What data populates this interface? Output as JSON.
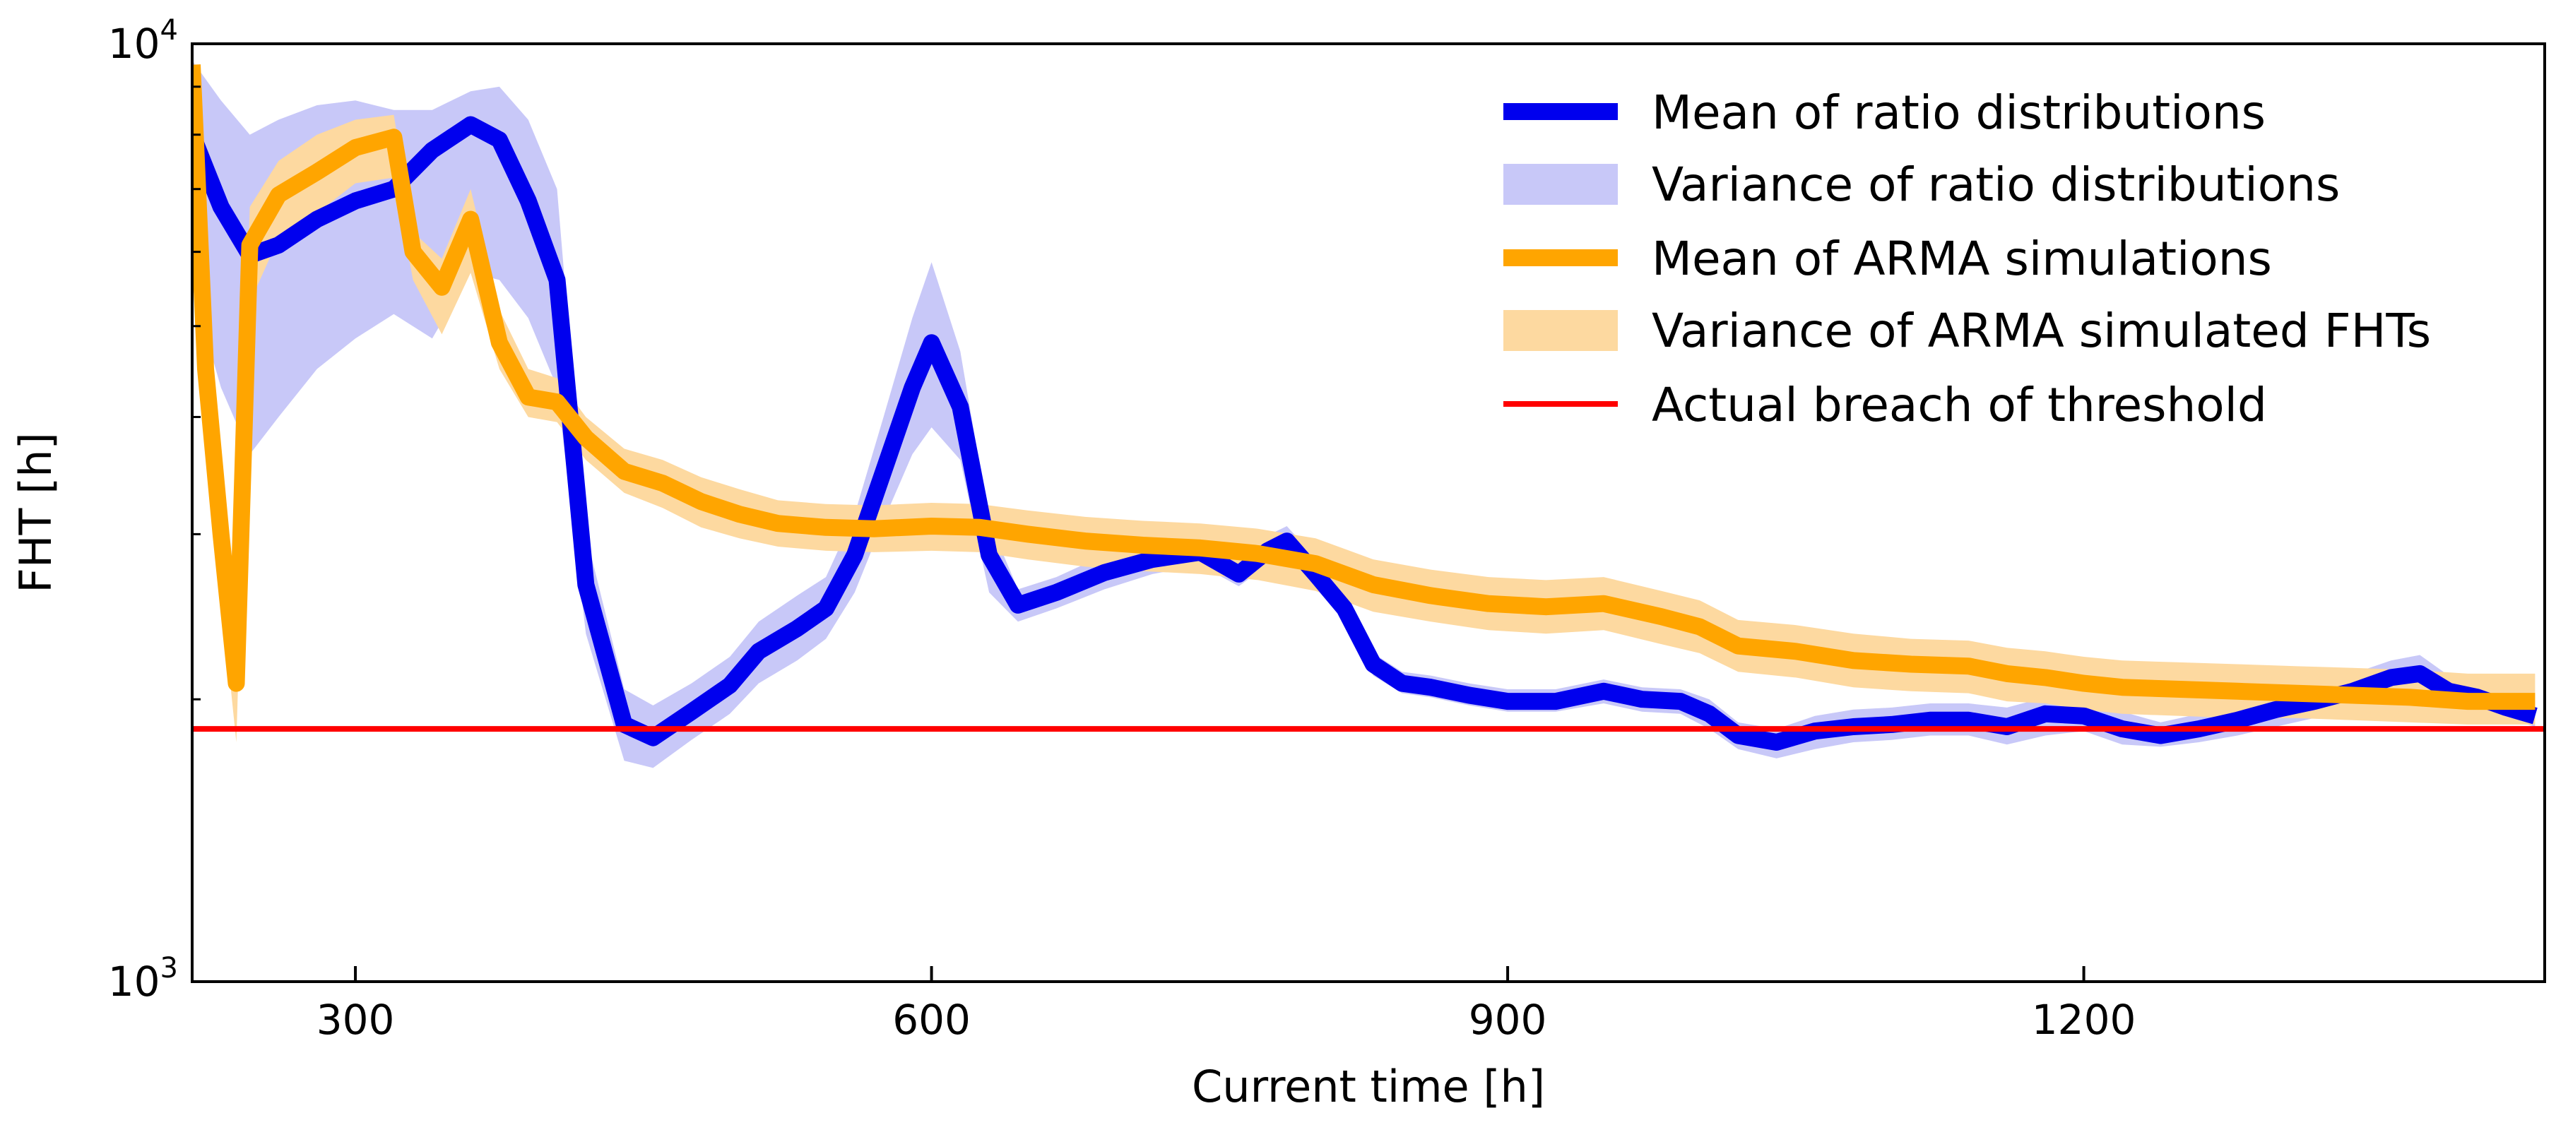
{
  "chart_data": {
    "type": "line",
    "title": "",
    "xlabel": "Current time [h]",
    "ylabel": "FHT [h]",
    "xlim": [
      215,
      1440
    ],
    "ylim": [
      1000,
      10000
    ],
    "yscale": "log",
    "x_ticks": [
      300,
      600,
      900,
      1200
    ],
    "y_ticks": [
      {
        "value": 1000,
        "base": "10",
        "exp": "3"
      },
      {
        "value": 10000,
        "base": "10",
        "exp": "4"
      }
    ],
    "legend_position": "top-right",
    "colors": {
      "ratio_mean": "#0000ee",
      "ratio_var": "#c8c8f8",
      "arma_mean": "#ffa500",
      "arma_var": "#fdd9a0",
      "threshold": "#ff0000"
    },
    "series": [
      {
        "name": "Mean of ratio distributions",
        "kind": "line",
        "x": [
          215,
          230,
          245,
          260,
          280,
          300,
          320,
          340,
          360,
          375,
          390,
          405,
          420,
          440,
          455,
          475,
          495,
          510,
          530,
          545,
          560,
          575,
          590,
          600,
          615,
          630,
          645,
          665,
          690,
          715,
          740,
          760,
          775,
          785,
          800,
          815,
          830,
          845,
          860,
          880,
          900,
          925,
          950,
          970,
          990,
          1005,
          1020,
          1040,
          1060,
          1080,
          1100,
          1120,
          1140,
          1160,
          1180,
          1200,
          1220,
          1240,
          1260,
          1280,
          1300,
          1320,
          1340,
          1360,
          1375,
          1390,
          1405,
          1420,
          1435
        ],
        "y": [
          8000,
          6700,
          5950,
          6100,
          6500,
          6800,
          7000,
          7700,
          8200,
          7900,
          6800,
          5600,
          2650,
          1880,
          1820,
          1940,
          2070,
          2250,
          2380,
          2500,
          2850,
          3500,
          4300,
          4800,
          4100,
          2850,
          2520,
          2600,
          2730,
          2820,
          2870,
          2720,
          2880,
          2950,
          2720,
          2500,
          2180,
          2080,
          2060,
          2020,
          1990,
          1990,
          2040,
          2000,
          1990,
          1930,
          1830,
          1800,
          1850,
          1870,
          1880,
          1900,
          1900,
          1870,
          1930,
          1920,
          1860,
          1830,
          1860,
          1900,
          1950,
          1990,
          2040,
          2110,
          2130,
          2040,
          2010,
          1960,
          1920
        ]
      },
      {
        "name": "Variance of ratio distributions",
        "kind": "band",
        "x": [
          215,
          230,
          245,
          260,
          280,
          300,
          320,
          340,
          360,
          375,
          390,
          405,
          420,
          440,
          455,
          475,
          495,
          510,
          530,
          545,
          560,
          575,
          590,
          600,
          615,
          630,
          645,
          665,
          690,
          715,
          740,
          760,
          775,
          785,
          800,
          815,
          830,
          845,
          860,
          880,
          900,
          925,
          950,
          970,
          990,
          1005,
          1020,
          1040,
          1060,
          1080,
          1100,
          1120,
          1140,
          1160,
          1180,
          1200,
          1220,
          1240,
          1260,
          1280,
          1300,
          1320,
          1340,
          1360,
          1375,
          1390,
          1405,
          1420,
          1435
        ],
        "lower": [
          5500,
          4300,
          3650,
          4000,
          4500,
          4850,
          5150,
          4850,
          5700,
          5600,
          5100,
          4300,
          2350,
          1720,
          1690,
          1810,
          1930,
          2080,
          2200,
          2320,
          2600,
          3100,
          3650,
          3900,
          3600,
          2600,
          2420,
          2500,
          2620,
          2720,
          2780,
          2640,
          2780,
          2850,
          2630,
          2420,
          2120,
          2030,
          2010,
          1970,
          1940,
          1940,
          1980,
          1940,
          1930,
          1860,
          1770,
          1730,
          1770,
          1800,
          1810,
          1830,
          1830,
          1790,
          1830,
          1850,
          1790,
          1780,
          1800,
          1830,
          1870,
          1910,
          1960,
          2020,
          2040,
          1980,
          1950,
          1910,
          1870
        ],
        "upper": [
          9600,
          8700,
          8000,
          8300,
          8600,
          8700,
          8500,
          8500,
          8900,
          9000,
          8300,
          7000,
          3000,
          2050,
          1970,
          2080,
          2220,
          2420,
          2580,
          2700,
          3150,
          4000,
          5100,
          5850,
          4700,
          3100,
          2620,
          2700,
          2850,
          2920,
          2980,
          2800,
          2990,
          3060,
          2830,
          2590,
          2240,
          2140,
          2120,
          2080,
          2050,
          2050,
          2100,
          2060,
          2050,
          2000,
          1890,
          1860,
          1920,
          1950,
          1960,
          1980,
          1980,
          1960,
          2010,
          2000,
          1940,
          1890,
          1930,
          1980,
          2040,
          2080,
          2130,
          2200,
          2230,
          2120,
          2080,
          2030,
          1990
        ]
      },
      {
        "name": "Mean of ARMA simulations",
        "kind": "line",
        "x": [
          215,
          222,
          230,
          238,
          245,
          260,
          280,
          300,
          320,
          330,
          345,
          360,
          375,
          390,
          405,
          420,
          440,
          460,
          480,
          500,
          520,
          545,
          570,
          600,
          625,
          650,
          680,
          710,
          740,
          770,
          800,
          830,
          860,
          890,
          920,
          950,
          980,
          1000,
          1020,
          1050,
          1080,
          1110,
          1140,
          1160,
          1180,
          1200,
          1220,
          1250,
          1280,
          1310,
          1340,
          1370,
          1400,
          1435
        ],
        "y": [
          9500,
          4500,
          3000,
          2080,
          6100,
          6900,
          7300,
          7750,
          7950,
          6000,
          5500,
          6500,
          4800,
          4200,
          4150,
          3800,
          3500,
          3400,
          3250,
          3150,
          3080,
          3050,
          3040,
          3060,
          3050,
          3000,
          2950,
          2920,
          2900,
          2860,
          2790,
          2650,
          2580,
          2530,
          2510,
          2530,
          2450,
          2390,
          2280,
          2250,
          2200,
          2180,
          2170,
          2130,
          2110,
          2080,
          2060,
          2050,
          2040,
          2030,
          2020,
          2010,
          1990,
          1990
        ]
      },
      {
        "name": "Variance of ARMA simulated FHTs",
        "kind": "band",
        "x": [
          215,
          222,
          230,
          238,
          245,
          260,
          280,
          300,
          320,
          330,
          345,
          360,
          375,
          390,
          405,
          420,
          440,
          460,
          480,
          500,
          520,
          545,
          570,
          600,
          625,
          650,
          680,
          710,
          740,
          770,
          800,
          830,
          860,
          890,
          920,
          950,
          980,
          1000,
          1020,
          1050,
          1080,
          1110,
          1140,
          1160,
          1180,
          1200,
          1220,
          1250,
          1280,
          1310,
          1340,
          1370,
          1400,
          1435
        ],
        "lower": [
          6500,
          4000,
          2600,
          1800,
          5300,
          6200,
          6600,
          7100,
          7200,
          5600,
          4900,
          5700,
          4500,
          4000,
          3950,
          3600,
          3320,
          3200,
          3050,
          2970,
          2910,
          2880,
          2870,
          2880,
          2870,
          2820,
          2770,
          2740,
          2720,
          2680,
          2610,
          2480,
          2420,
          2370,
          2350,
          2370,
          2290,
          2240,
          2140,
          2110,
          2060,
          2040,
          2030,
          1990,
          1980,
          1950,
          1930,
          1920,
          1910,
          1910,
          1900,
          1890,
          1880,
          1880
        ],
        "upper": [
          10000,
          5200,
          3400,
          2400,
          6700,
          7500,
          8000,
          8300,
          8400,
          6300,
          5900,
          7000,
          5200,
          4500,
          4400,
          4000,
          3700,
          3600,
          3450,
          3350,
          3260,
          3230,
          3220,
          3240,
          3230,
          3180,
          3130,
          3100,
          3080,
          3040,
          2970,
          2820,
          2750,
          2700,
          2680,
          2700,
          2610,
          2550,
          2430,
          2400,
          2350,
          2320,
          2310,
          2270,
          2250,
          2220,
          2200,
          2190,
          2180,
          2170,
          2160,
          2150,
          2130,
          2130
        ]
      },
      {
        "name": "Actual breach of threshold",
        "kind": "hline",
        "y": 1860
      }
    ]
  }
}
